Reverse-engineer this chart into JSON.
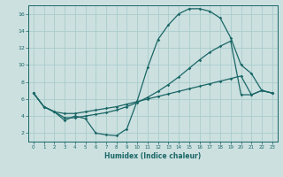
{
  "xlabel": "Humidex (Indice chaleur)",
  "ylabel": "",
  "background_color": "#cce0e0",
  "grid_color": "#aacccc",
  "line_color": "#1a6666",
  "xlim": [
    -0.5,
    23.5
  ],
  "ylim": [
    1,
    17
  ],
  "xticks": [
    0,
    1,
    2,
    3,
    4,
    5,
    6,
    7,
    8,
    9,
    10,
    11,
    12,
    13,
    14,
    15,
    16,
    17,
    18,
    19,
    20,
    21,
    22,
    23
  ],
  "yticks": [
    2,
    4,
    6,
    8,
    10,
    12,
    14,
    16
  ],
  "line1_x": [
    0,
    1,
    2,
    3,
    4,
    5,
    6,
    7,
    8,
    9,
    10,
    11,
    12,
    13,
    14,
    15,
    16,
    17,
    18,
    19,
    20,
    21,
    22,
    23
  ],
  "line1_y": [
    6.7,
    5.1,
    4.5,
    3.5,
    4.0,
    3.7,
    2.0,
    1.8,
    1.7,
    2.5,
    5.8,
    9.7,
    13.0,
    14.7,
    16.0,
    16.6,
    16.6,
    16.3,
    15.5,
    13.2,
    10.0,
    9.0,
    7.0,
    6.7
  ],
  "line2_x": [
    0,
    1,
    2,
    3,
    4,
    5,
    6,
    7,
    8,
    9,
    10,
    11,
    12,
    13,
    14,
    15,
    16,
    17,
    18,
    19,
    20,
    21,
    22,
    23
  ],
  "line2_y": [
    6.7,
    5.1,
    4.5,
    4.3,
    4.3,
    4.5,
    4.7,
    4.9,
    5.1,
    5.4,
    5.7,
    6.0,
    6.3,
    6.6,
    6.9,
    7.2,
    7.5,
    7.8,
    8.1,
    8.4,
    8.7,
    6.5,
    7.0,
    6.7
  ],
  "line3_x": [
    0,
    1,
    2,
    3,
    4,
    5,
    6,
    7,
    8,
    9,
    10,
    11,
    12,
    13,
    14,
    15,
    16,
    17,
    18,
    19,
    20,
    21,
    22,
    23
  ],
  "line3_y": [
    6.7,
    5.1,
    4.5,
    3.8,
    3.8,
    4.0,
    4.2,
    4.4,
    4.7,
    5.1,
    5.6,
    6.2,
    6.9,
    7.7,
    8.6,
    9.6,
    10.6,
    11.5,
    12.2,
    12.8,
    6.5,
    6.5,
    7.0,
    6.7
  ]
}
